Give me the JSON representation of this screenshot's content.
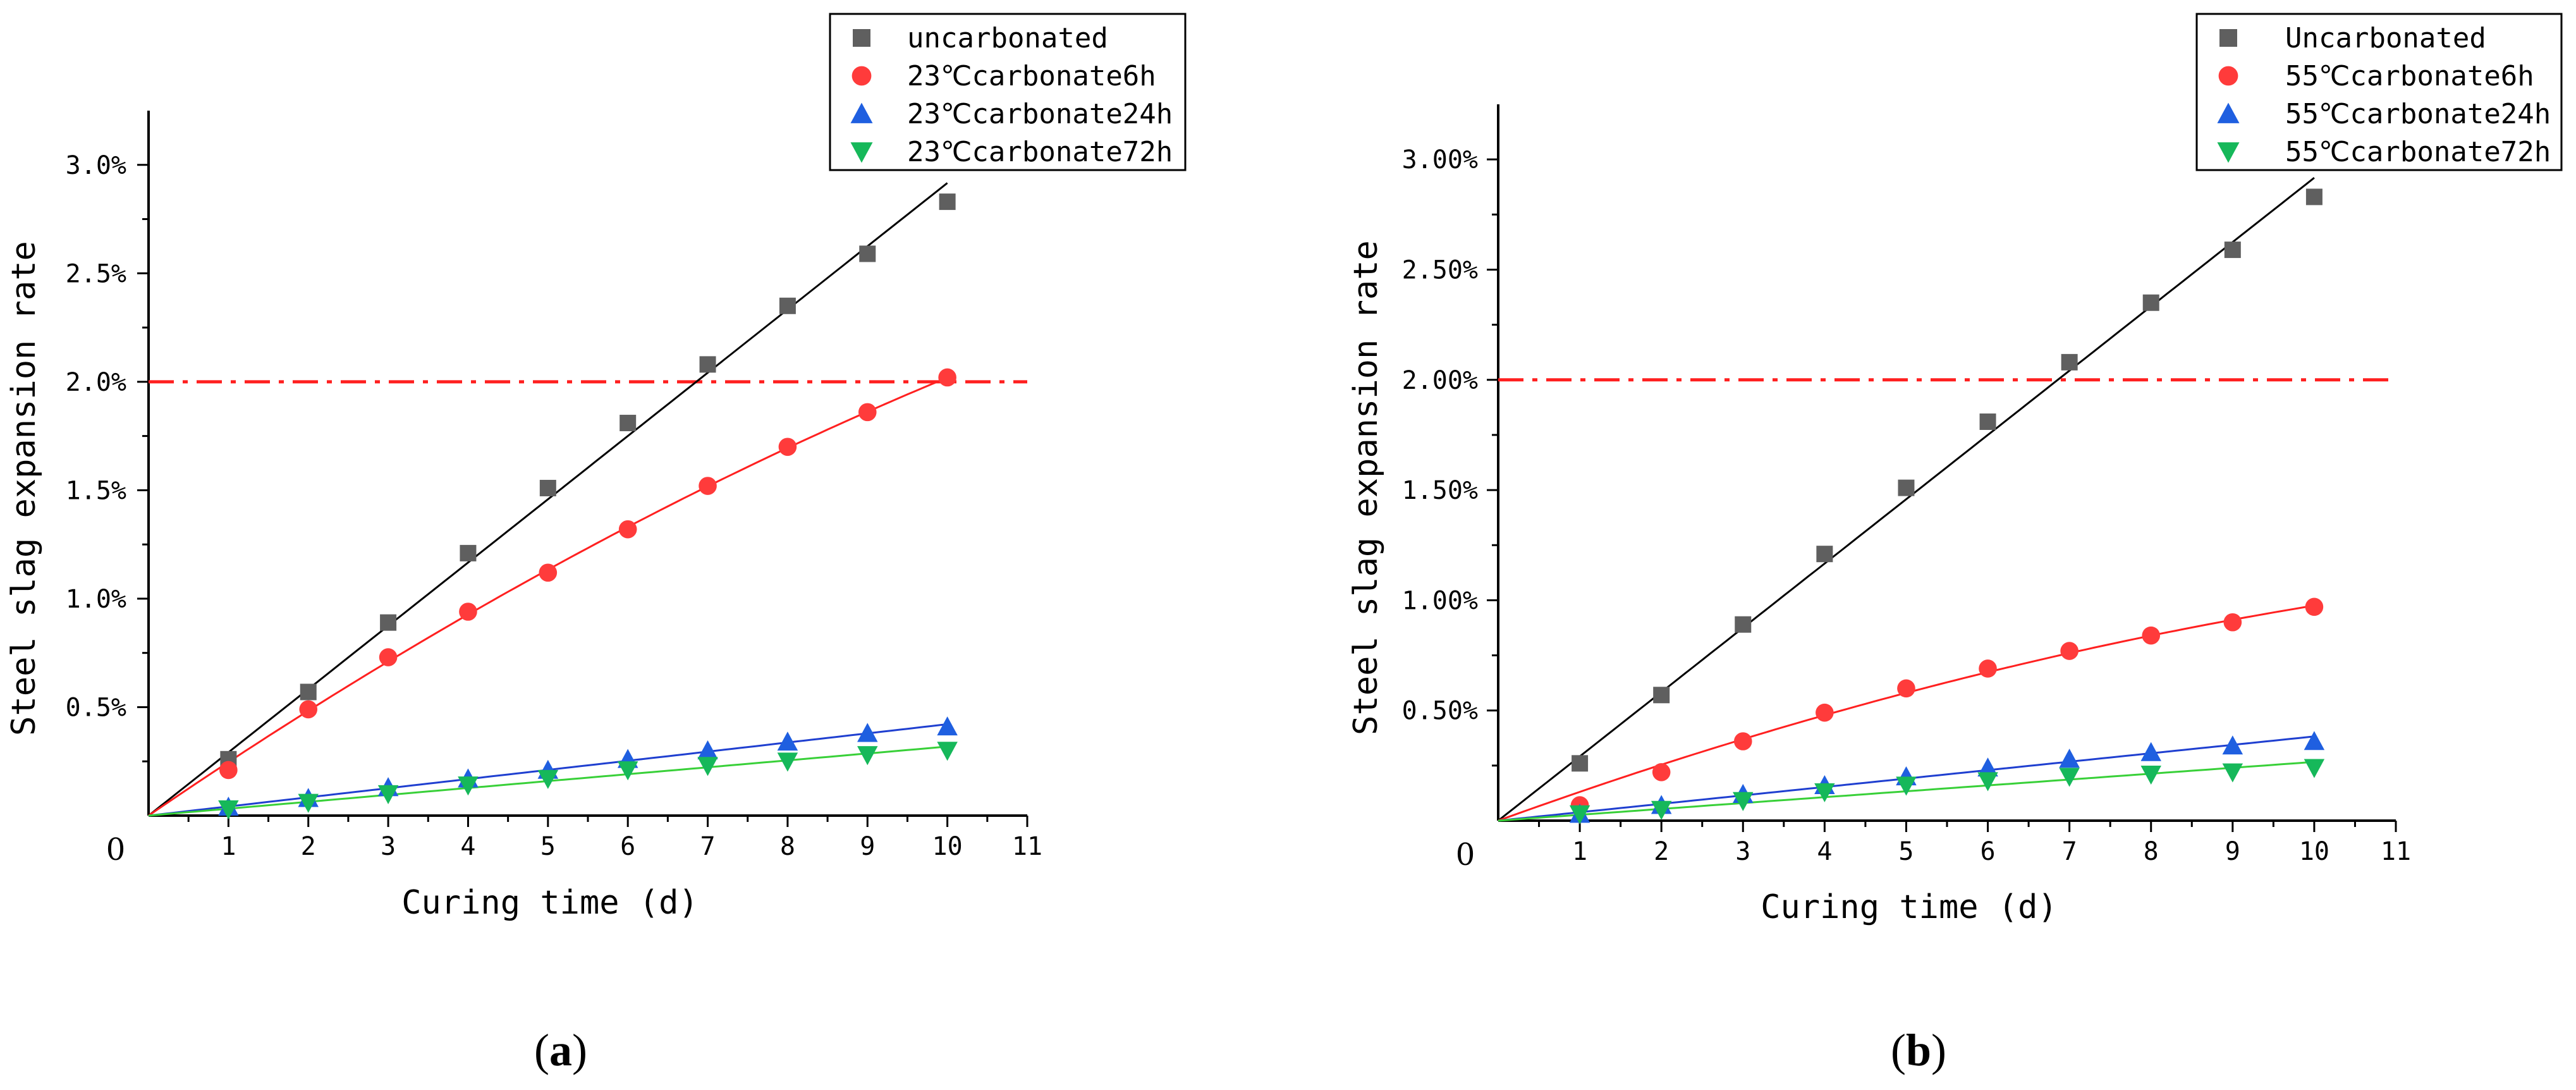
{
  "figure": {
    "panel_labels": {
      "a": {
        "open": "(",
        "letter": "a",
        "close": ")"
      },
      "b": {
        "open": "(",
        "letter": "b",
        "close": ")"
      }
    }
  },
  "chart_data": [
    {
      "id": "a",
      "type": "scatter",
      "xlabel": "Curing time (d)",
      "ylabel": "Steel slag expansion rate",
      "xlim": [
        0,
        11
      ],
      "ylim": [
        0,
        3.25
      ],
      "x_ticks": [
        1,
        2,
        3,
        4,
        5,
        6,
        7,
        8,
        9,
        10,
        11
      ],
      "y_ticks": [
        {
          "value": 0.5,
          "label": "0.5%"
        },
        {
          "value": 1.0,
          "label": "1.0%"
        },
        {
          "value": 1.5,
          "label": "1.5%"
        },
        {
          "value": 2.0,
          "label": "2.0%"
        },
        {
          "value": 2.5,
          "label": "2.5%"
        },
        {
          "value": 3.0,
          "label": "3.0%"
        }
      ],
      "origin_label": "0",
      "reference_line": {
        "y": 2.0,
        "style": "dash-dot",
        "color": "#ff1f1f"
      },
      "legend_position": "top-right",
      "series": [
        {
          "name": "uncarbonated",
          "marker": "square",
          "color": "#5f5f5f",
          "line_color": "#000000",
          "fit": "linear",
          "x": [
            1,
            2,
            3,
            4,
            5,
            6,
            7,
            8,
            9,
            10
          ],
          "values": [
            0.26,
            0.57,
            0.89,
            1.21,
            1.51,
            1.81,
            2.08,
            2.35,
            2.59,
            2.83
          ]
        },
        {
          "name": "23℃carbonate6h",
          "marker": "circle",
          "color": "#ff3b3b",
          "line_color": "#ff2020",
          "fit": "quadratic",
          "x": [
            1,
            2,
            3,
            4,
            5,
            6,
            7,
            8,
            9,
            10
          ],
          "values": [
            0.21,
            0.49,
            0.73,
            0.94,
            1.12,
            1.32,
            1.52,
            1.7,
            1.86,
            2.02
          ]
        },
        {
          "name": "23℃carbonate24h",
          "marker": "triangle-up",
          "color": "#1f5fe0",
          "line_color": "#1f3fd0",
          "fit": "linear",
          "x": [
            1,
            2,
            3,
            4,
            5,
            6,
            7,
            8,
            9,
            10
          ],
          "values": [
            0.04,
            0.08,
            0.13,
            0.17,
            0.21,
            0.26,
            0.3,
            0.34,
            0.38,
            0.41
          ]
        },
        {
          "name": "23℃carbonate72h",
          "marker": "triangle-down",
          "color": "#16b85a",
          "line_color": "#38d038",
          "fit": "linear",
          "x": [
            1,
            2,
            3,
            4,
            5,
            6,
            7,
            8,
            9,
            10
          ],
          "values": [
            0.03,
            0.06,
            0.1,
            0.14,
            0.17,
            0.21,
            0.23,
            0.25,
            0.28,
            0.3
          ]
        }
      ]
    },
    {
      "id": "b",
      "type": "scatter",
      "xlabel": "Curing time (d)",
      "ylabel": "Steel slag expansion rate",
      "xlim": [
        0,
        11
      ],
      "ylim": [
        0,
        3.25
      ],
      "x_ticks": [
        1,
        2,
        3,
        4,
        5,
        6,
        7,
        8,
        9,
        10,
        11
      ],
      "y_ticks": [
        {
          "value": 0.5,
          "label": "0.50%"
        },
        {
          "value": 1.0,
          "label": "1.00%"
        },
        {
          "value": 1.5,
          "label": "1.50%"
        },
        {
          "value": 2.0,
          "label": "2.00%"
        },
        {
          "value": 2.5,
          "label": "2.50%"
        },
        {
          "value": 3.0,
          "label": "3.00%"
        }
      ],
      "origin_label": "0",
      "reference_line": {
        "y": 2.0,
        "style": "dash-dot",
        "color": "#ff1f1f"
      },
      "legend_position": "top-right",
      "series": [
        {
          "name": "Uncarbonated",
          "marker": "square",
          "color": "#5f5f5f",
          "line_color": "#000000",
          "fit": "linear",
          "x": [
            1,
            2,
            3,
            4,
            5,
            6,
            7,
            8,
            9,
            10
          ],
          "values": [
            0.26,
            0.57,
            0.89,
            1.21,
            1.51,
            1.81,
            2.08,
            2.35,
            2.59,
            2.83
          ]
        },
        {
          "name": "55℃carbonate6h",
          "marker": "circle",
          "color": "#ff3b3b",
          "line_color": "#ff2020",
          "fit": "quadratic",
          "x": [
            1,
            2,
            3,
            4,
            5,
            6,
            7,
            8,
            9,
            10
          ],
          "values": [
            0.07,
            0.22,
            0.36,
            0.49,
            0.6,
            0.69,
            0.77,
            0.84,
            0.9,
            0.97
          ]
        },
        {
          "name": "55℃carbonate24h",
          "marker": "triangle-up",
          "color": "#1f5fe0",
          "line_color": "#1f3fd0",
          "fit": "linear",
          "x": [
            1,
            2,
            3,
            4,
            5,
            6,
            7,
            8,
            9,
            10
          ],
          "values": [
            0.03,
            0.07,
            0.12,
            0.16,
            0.2,
            0.24,
            0.28,
            0.31,
            0.34,
            0.36
          ]
        },
        {
          "name": "55℃carbonate72h",
          "marker": "triangle-down",
          "color": "#16b85a",
          "line_color": "#38d038",
          "fit": "linear",
          "x": [
            1,
            2,
            3,
            4,
            5,
            6,
            7,
            8,
            9,
            10
          ],
          "values": [
            0.03,
            0.05,
            0.09,
            0.13,
            0.16,
            0.18,
            0.2,
            0.21,
            0.22,
            0.24
          ]
        }
      ]
    }
  ]
}
